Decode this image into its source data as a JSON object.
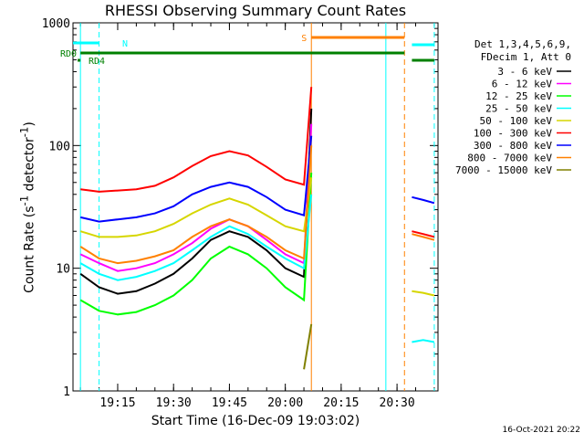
{
  "chart_data": {
    "type": "line",
    "title": "RHESSI Observing Summary Count Rates",
    "xlabel": "Start Time (16-Dec-09 19:03:02)",
    "ylabel": "Count Rate (s",
    "ylabel_sup": "-1",
    "ylabel_mid": " detector",
    "ylabel_sup2": "-1",
    "ylabel_end": ")",
    "timestamp": "16-Oct-2021 20:22",
    "y_scale": "log",
    "ylim": [
      1,
      1000
    ],
    "xlim": [
      "19:03",
      "20:41"
    ],
    "x_ticks": [
      "19:15",
      "19:30",
      "19:45",
      "20:00",
      "20:15",
      "20:30"
    ],
    "y_ticks": [
      "1",
      "10",
      "100",
      "1000"
    ],
    "grid": false,
    "legend_position": "top-right",
    "legend_header": [
      "Det 1,3,4,5,6,9,",
      "FDecim 1, Att 0"
    ],
    "series": [
      {
        "name": "3 - 6 keV",
        "color": "#000000",
        "x": [
          "19:05",
          "19:10",
          "19:15",
          "19:20",
          "19:25",
          "19:30",
          "19:35",
          "19:40",
          "19:45",
          "19:50",
          "19:55",
          "20:00",
          "20:05",
          "20:07",
          "20:34",
          "20:37",
          "20:40"
        ],
        "values": [
          9,
          7,
          6.2,
          6.5,
          7.5,
          9,
          12,
          17,
          20,
          18,
          14,
          10,
          8.5,
          200,
          null,
          null,
          null
        ]
      },
      {
        "name": "6 - 12 keV",
        "color": "#ff00ff",
        "x": [
          "19:05",
          "19:10",
          "19:15",
          "19:20",
          "19:25",
          "19:30",
          "19:35",
          "19:40",
          "19:45",
          "19:50",
          "19:55",
          "20:00",
          "20:05",
          "20:07",
          "20:34",
          "20:37",
          "20:40"
        ],
        "values": [
          13,
          11,
          9.5,
          10,
          11,
          13,
          16,
          21,
          25,
          22,
          17,
          13,
          11,
          150,
          null,
          null,
          null
        ]
      },
      {
        "name": "12 - 25 keV",
        "color": "#00ff00",
        "x": [
          "19:05",
          "19:10",
          "19:15",
          "19:20",
          "19:25",
          "19:30",
          "19:35",
          "19:40",
          "19:45",
          "19:50",
          "19:55",
          "20:00",
          "20:05",
          "20:07",
          "20:34",
          "20:37",
          "20:40"
        ],
        "values": [
          5.5,
          4.5,
          4.2,
          4.4,
          5,
          6,
          8,
          12,
          15,
          13,
          10,
          7,
          5.5,
          60,
          null,
          null,
          null
        ]
      },
      {
        "name": "25 - 50 keV",
        "color": "#00ffff",
        "x": [
          "19:05",
          "19:10",
          "19:15",
          "19:20",
          "19:25",
          "19:30",
          "19:35",
          "19:40",
          "19:45",
          "19:50",
          "19:55",
          "20:00",
          "20:05",
          "20:07",
          "20:34",
          "20:37",
          "20:40"
        ],
        "values": [
          11,
          9,
          8,
          8.5,
          9.5,
          11,
          14,
          18,
          22,
          19,
          15,
          12,
          10,
          40,
          2.5,
          2.6,
          2.5
        ]
      },
      {
        "name": "50 - 100 keV",
        "color": "#d6d600",
        "x": [
          "19:05",
          "19:10",
          "19:15",
          "19:20",
          "19:25",
          "19:30",
          "19:35",
          "19:40",
          "19:45",
          "19:50",
          "19:55",
          "20:00",
          "20:05",
          "20:07",
          "20:34",
          "20:37",
          "20:40"
        ],
        "values": [
          20,
          18,
          18,
          18.5,
          20,
          23,
          28,
          33,
          37,
          33,
          27,
          22,
          20,
          55,
          6.5,
          6.3,
          6
        ]
      },
      {
        "name": "100 - 300 keV",
        "color": "#ff0000",
        "x": [
          "19:05",
          "19:10",
          "19:15",
          "19:20",
          "19:25",
          "19:30",
          "19:35",
          "19:40",
          "19:45",
          "19:50",
          "19:55",
          "20:00",
          "20:05",
          "20:07",
          "20:34",
          "20:37",
          "20:40"
        ],
        "values": [
          44,
          42,
          43,
          44,
          47,
          55,
          68,
          82,
          90,
          83,
          67,
          53,
          48,
          300,
          20,
          19,
          18
        ]
      },
      {
        "name": "300 - 800 keV",
        "color": "#0000ff",
        "x": [
          "19:05",
          "19:10",
          "19:15",
          "19:20",
          "19:25",
          "19:30",
          "19:35",
          "19:40",
          "19:45",
          "19:50",
          "19:55",
          "20:00",
          "20:05",
          "20:07",
          "20:34",
          "20:37",
          "20:40"
        ],
        "values": [
          26,
          24,
          25,
          26,
          28,
          32,
          40,
          46,
          50,
          46,
          38,
          30,
          27,
          120,
          38,
          36,
          34
        ]
      },
      {
        "name": "800 - 7000 keV",
        "color": "#ff8000",
        "x": [
          "19:05",
          "19:10",
          "19:15",
          "19:20",
          "19:25",
          "19:30",
          "19:35",
          "19:40",
          "19:45",
          "19:50",
          "19:55",
          "20:00",
          "20:05",
          "20:07",
          "20:34",
          "20:37",
          "20:40"
        ],
        "values": [
          15,
          12,
          11,
          11.5,
          12.5,
          14,
          18,
          22,
          25,
          22,
          18,
          14,
          12,
          100,
          19,
          18,
          17
        ]
      },
      {
        "name": "7000 - 15000 keV",
        "color": "#808000",
        "x": [
          "19:05",
          "19:10",
          "19:15",
          "19:20",
          "19:25",
          "19:30",
          "19:35",
          "19:40",
          "19:45",
          "19:50",
          "19:55",
          "20:00",
          "20:05",
          "20:07",
          "20:34",
          "20:37",
          "20:40"
        ],
        "values": [
          null,
          null,
          null,
          null,
          null,
          null,
          null,
          null,
          null,
          null,
          null,
          null,
          1.5,
          3.5,
          null,
          null,
          null
        ]
      }
    ],
    "annotations": [
      {
        "text": "N",
        "color": "#00ffff",
        "start": "19:03",
        "end": "19:10"
      },
      {
        "text": "S",
        "color": "#ff8000",
        "start": "20:07",
        "end": "20:32"
      },
      {
        "text": "RD0",
        "color": "#008000",
        "start": "19:05",
        "end": "20:32"
      },
      {
        "text": "RD4",
        "color": "#008000",
        "start": "19:03",
        "end": "19:05"
      }
    ],
    "extra_bars": [
      {
        "color": "#00ffff",
        "start": "20:34",
        "end": "20:40"
      },
      {
        "color": "#008000",
        "start": "20:34",
        "end": "20:40"
      }
    ],
    "vertical_lines": [
      {
        "x": "19:05",
        "color": "#00ffff",
        "style": "solid"
      },
      {
        "x": "19:10",
        "color": "#00ffff",
        "style": "dashed"
      },
      {
        "x": "20:07",
        "color": "#ff8000",
        "style": "solid"
      },
      {
        "x": "20:27",
        "color": "#00ffff",
        "style": "solid"
      },
      {
        "x": "20:32",
        "color": "#ff8000",
        "style": "dashed"
      },
      {
        "x": "20:40",
        "color": "#00ffff",
        "style": "dashed"
      }
    ]
  }
}
